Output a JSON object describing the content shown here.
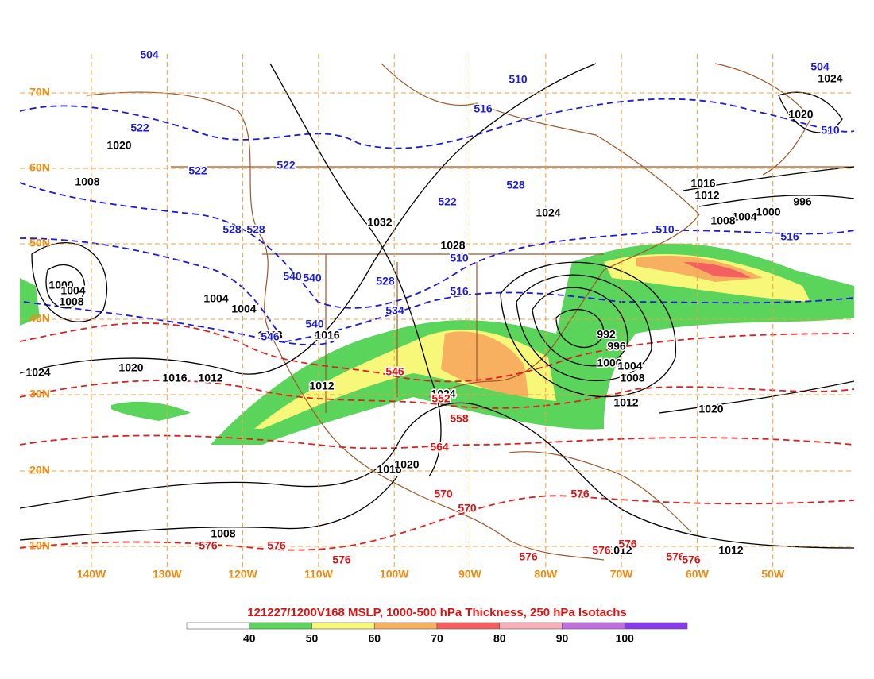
{
  "title": "121227/1200V168 MSLP, 1000-500 hPa Thickness, 250 hPa Isotachs",
  "latitude_labels": [
    "70N",
    "60N",
    "50N",
    "40N",
    "30N",
    "20N",
    "10N"
  ],
  "longitude_labels": [
    "140W",
    "130W",
    "120W",
    "110W",
    "100W",
    "90W",
    "80W",
    "70W",
    "60W",
    "50W"
  ],
  "pressure_labels": [
    "1024",
    "1020",
    "1020",
    "1008",
    "1016",
    "1012",
    "1024",
    "1032",
    "996",
    "1000",
    "1004",
    "1008",
    "1028",
    "1000",
    "1004",
    "1008",
    "1004",
    "1004",
    "1008",
    "1016",
    "992",
    "996",
    "1000",
    "1004",
    "1008",
    "1024",
    "1020",
    "1016",
    "1012",
    "1012",
    "1024",
    "1012",
    "1020",
    "1016",
    "1020",
    "1008",
    "1012",
    "1012"
  ],
  "thickness_labels_cold": [
    "504",
    "504",
    "510",
    "516",
    "522",
    "510",
    "522",
    "522",
    "528",
    "522",
    "528",
    "528",
    "510",
    "516",
    "510",
    "540",
    "540",
    "528",
    "516",
    "534",
    "540",
    "546"
  ],
  "thickness_labels_warm": [
    "546",
    "552",
    "558",
    "564",
    "570",
    "570",
    "576",
    "576",
    "576",
    "576",
    "576",
    "576",
    "576",
    "576",
    "576"
  ],
  "colorbar": {
    "ticks": [
      40,
      50,
      60,
      70,
      80,
      90,
      100
    ],
    "colors": [
      "#ffffff",
      "#5ad45a",
      "#f7f77a",
      "#f7b060",
      "#f46060",
      "#f7b0b8",
      "#c070e0",
      "#8a3aea"
    ]
  }
}
